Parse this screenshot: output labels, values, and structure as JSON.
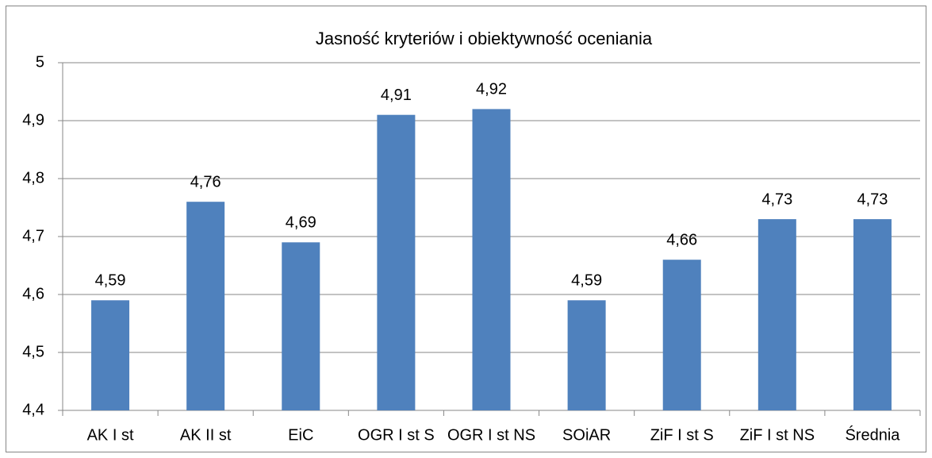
{
  "chart_data": {
    "type": "bar",
    "title": "Jasność kryteriów i obiektywność oceniania",
    "categories": [
      "AK I st",
      "AK II st",
      "EiC",
      "OGR I st S",
      "OGR I st NS",
      "SOiAR",
      "ZiF I st S",
      "ZiF I st NS",
      "Średnia"
    ],
    "values": [
      4.59,
      4.76,
      4.69,
      4.91,
      4.92,
      4.59,
      4.66,
      4.73,
      4.73
    ],
    "value_labels": [
      "4,59",
      "4,76",
      "4,69",
      "4,91",
      "4,92",
      "4,59",
      "4,66",
      "4,73",
      "4,73"
    ],
    "color": "#4f81bd",
    "ylim": [
      4.4,
      5
    ],
    "yticks": [
      {
        "value": 4.4,
        "label": "4,4"
      },
      {
        "value": 4.5,
        "label": "4,5"
      },
      {
        "value": 4.6,
        "label": "4,6"
      },
      {
        "value": 4.7,
        "label": "4,7"
      },
      {
        "value": 4.8,
        "label": "4,8"
      },
      {
        "value": 4.9,
        "label": "4,9"
      },
      5
    ],
    "grid": true
  }
}
